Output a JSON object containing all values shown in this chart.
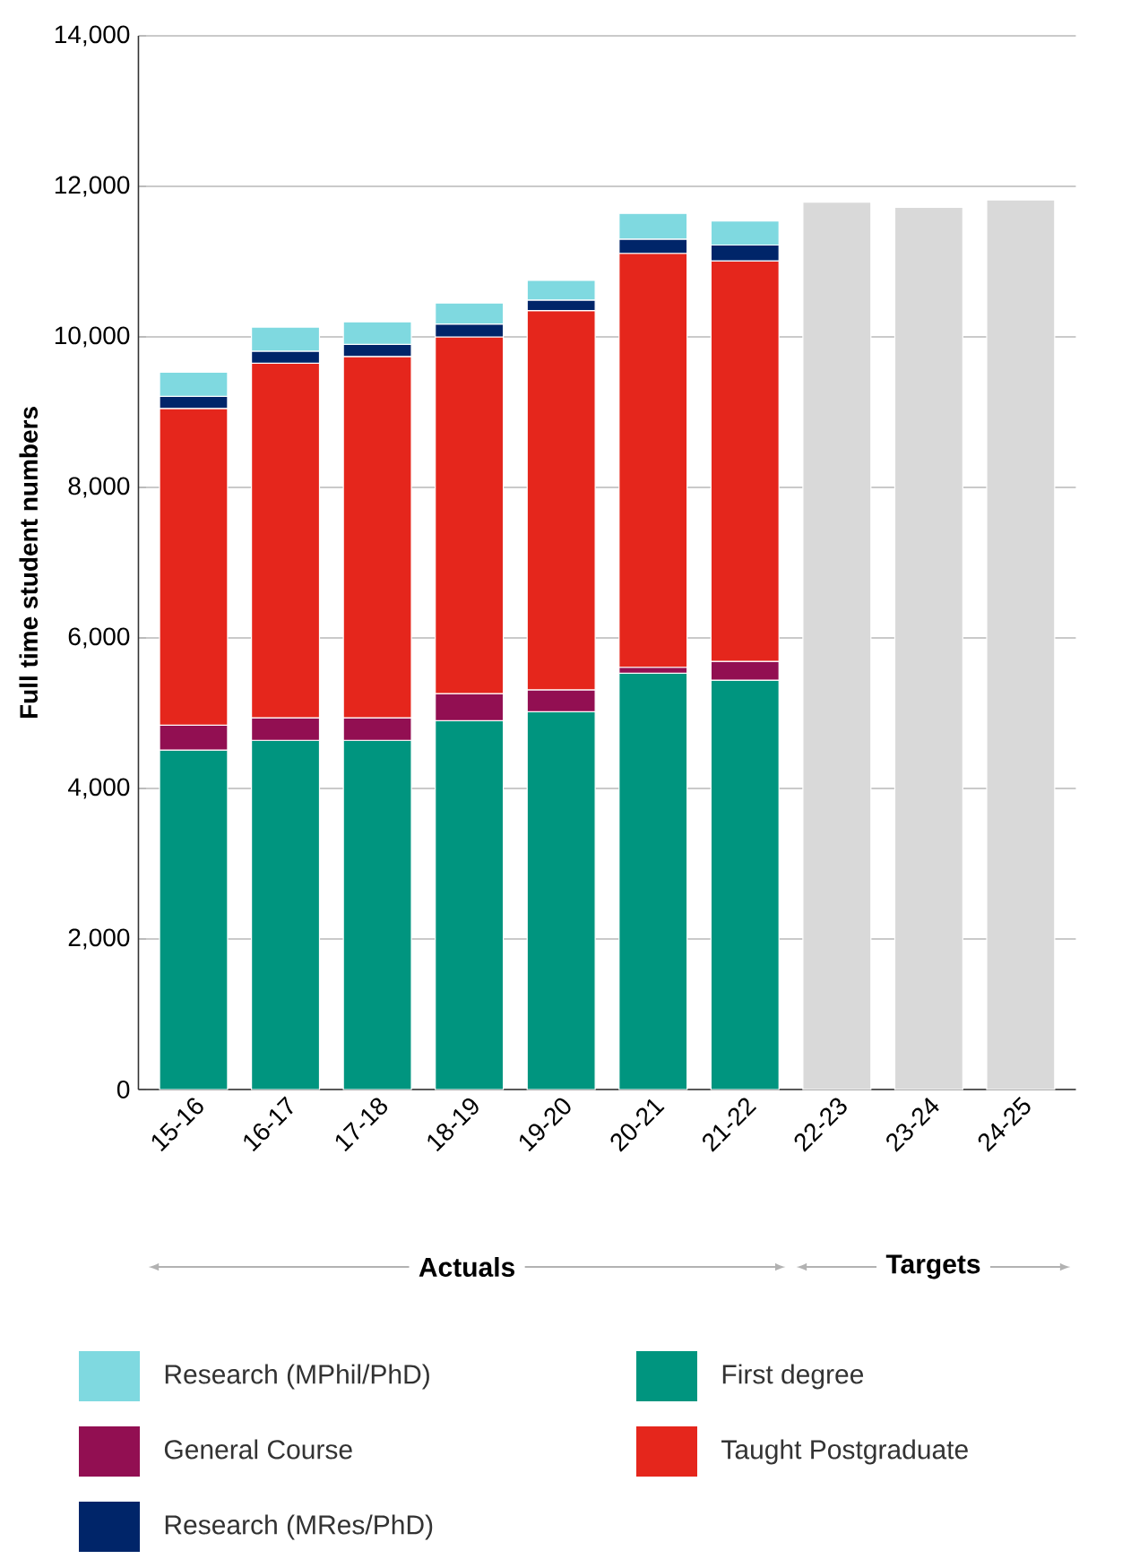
{
  "chart_data": {
    "type": "bar",
    "stacked": true,
    "ylabel": "Full time student numbers",
    "categories": [
      "15-16",
      "16-17",
      "17-18",
      "18-19",
      "19-20",
      "20-21",
      "21-22",
      "22-23",
      "23-24",
      "24-25"
    ],
    "series": [
      {
        "name": "First degree",
        "color": "#00957f",
        "values": [
          4510,
          4640,
          4640,
          4900,
          5020,
          5530,
          5440,
          null,
          null,
          null
        ]
      },
      {
        "name": "General Course",
        "color": "#920f52",
        "values": [
          330,
          300,
          300,
          360,
          290,
          80,
          250,
          null,
          null,
          null
        ]
      },
      {
        "name": "Taught Postgraduate",
        "color": "#e5261c",
        "values": [
          4210,
          4710,
          4800,
          4740,
          5040,
          5500,
          5320,
          null,
          null,
          null
        ]
      },
      {
        "name": "Research (MRes/PhD)",
        "color": "#002569",
        "values": [
          160,
          160,
          160,
          170,
          140,
          190,
          210,
          null,
          null,
          null
        ]
      },
      {
        "name": "Research (MPhil/PhD)",
        "color": "#7fd9e0",
        "values": [
          320,
          320,
          300,
          280,
          260,
          340,
          320,
          null,
          null,
          null
        ]
      },
      {
        "color": "#d9d9d9",
        "values": [
          null,
          null,
          null,
          null,
          null,
          null,
          null,
          11790,
          11720,
          11820
        ]
      }
    ],
    "ylim": [
      0,
      14000
    ],
    "yticks": [
      {
        "value": 0,
        "label": "0"
      },
      {
        "value": 2000,
        "label": "2,000"
      },
      {
        "value": 4000,
        "label": "4,000"
      },
      {
        "value": 6000,
        "label": "6,000"
      },
      {
        "value": 8000,
        "label": "8,000"
      },
      {
        "value": 10000,
        "label": "10,000"
      },
      {
        "value": 12000,
        "label": "12,000"
      },
      {
        "value": 14000,
        "label": "14,000"
      }
    ],
    "grid": "y",
    "legend": "bottom",
    "annotations": [
      "Actuals",
      "Targets"
    ]
  }
}
